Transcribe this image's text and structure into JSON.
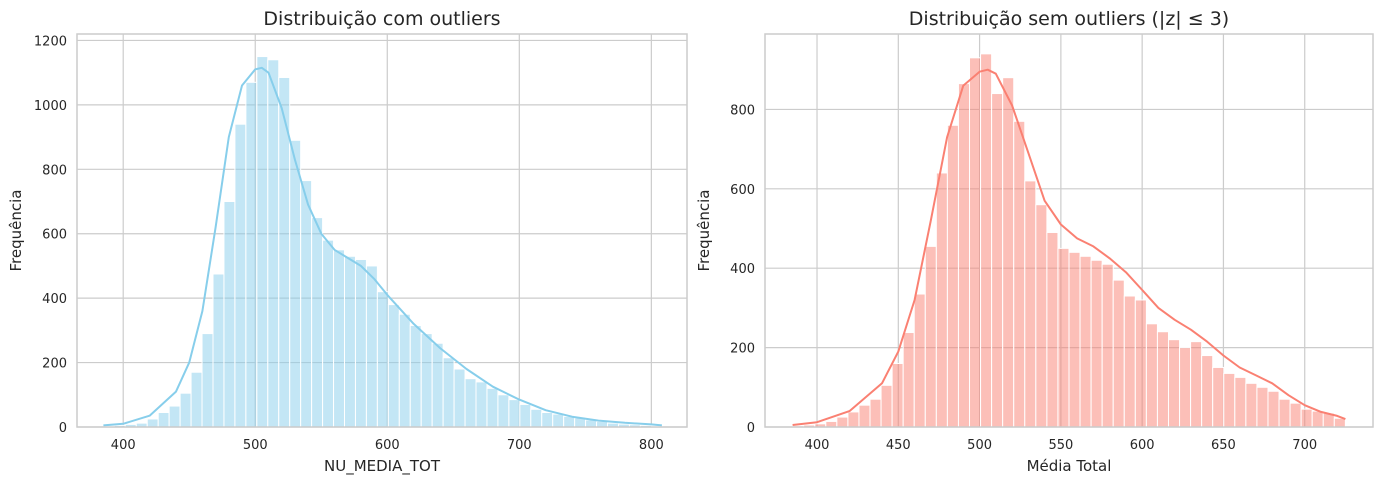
{
  "chart_data": [
    {
      "type": "histogram",
      "title": "Distribuição com outliers",
      "xlabel": "NU_MEDIA_TOT",
      "ylabel": "Frequência",
      "xlim": [
        365,
        827
      ],
      "ylim": [
        0,
        1220
      ],
      "xticks": [
        400,
        500,
        600,
        700,
        800
      ],
      "yticks": [
        0,
        200,
        400,
        600,
        800,
        1000,
        1200
      ],
      "grid": true,
      "kde": true,
      "color": "#87ceeb",
      "kde_color": "#87ceeb",
      "bins": {
        "edges": [
          385,
          393.3,
          401.6,
          409.9,
          418.2,
          426.5,
          434.8,
          443.1,
          451.4,
          459.7,
          468,
          476.3,
          484.6,
          492.9,
          501.2,
          509.5,
          517.8,
          526.1,
          534.4,
          542.7,
          551,
          559.3,
          567.6,
          575.9,
          584.2,
          592.5,
          600.8,
          609.1,
          617.4,
          625.7,
          634,
          642.3,
          650.6,
          658.9,
          667.2,
          675.5,
          683.8,
          692.1,
          700.4,
          708.7,
          717,
          725.3,
          733.6,
          741.9,
          750.2,
          758.5,
          766.8,
          775.1,
          783.4,
          791.7,
          800,
          808.3
        ],
        "counts": [
          3,
          5,
          8,
          12,
          25,
          45,
          65,
          105,
          170,
          290,
          475,
          700,
          940,
          1070,
          1150,
          1140,
          1085,
          890,
          765,
          650,
          580,
          550,
          530,
          520,
          500,
          420,
          380,
          350,
          315,
          290,
          260,
          215,
          180,
          150,
          140,
          120,
          100,
          85,
          70,
          55,
          45,
          40,
          33,
          28,
          22,
          17,
          12,
          9,
          7,
          5,
          3
        ]
      },
      "kde_curve": {
        "x": [
          385,
          400,
          420,
          440,
          450,
          460,
          470,
          480,
          490,
          500,
          505,
          510,
          520,
          530,
          540,
          550,
          560,
          570,
          580,
          590,
          600,
          610,
          620,
          640,
          660,
          680,
          700,
          720,
          740,
          760,
          780,
          800,
          808
        ],
        "y": [
          5,
          10,
          35,
          110,
          200,
          360,
          620,
          900,
          1060,
          1110,
          1115,
          1100,
          990,
          830,
          690,
          600,
          550,
          525,
          500,
          460,
          410,
          365,
          320,
          245,
          180,
          125,
          85,
          52,
          32,
          20,
          13,
          8,
          5
        ]
      }
    },
    {
      "type": "histogram",
      "title": "Distribuição sem outliers (|z| ≤ 3)",
      "xlabel": "Média Total",
      "ylabel": "Frequência",
      "xlim": [
        368,
        742
      ],
      "ylim": [
        0,
        990
      ],
      "xticks": [
        400,
        450,
        500,
        550,
        600,
        650,
        700
      ],
      "yticks": [
        0,
        200,
        400,
        600,
        800
      ],
      "grid": true,
      "kde": true,
      "color": "#fa8072",
      "kde_color": "#fa8072",
      "bins": {
        "edges": [
          385,
          391.8,
          398.6,
          405.4,
          412.2,
          419,
          425.8,
          432.6,
          439.4,
          446.2,
          453,
          459.8,
          466.6,
          473.4,
          480.2,
          487,
          493.8,
          500.6,
          507.4,
          514.2,
          521,
          527.8,
          534.6,
          541.4,
          548.2,
          555,
          561.8,
          568.6,
          575.4,
          582.2,
          589,
          595.8,
          602.6,
          609.4,
          616.2,
          623,
          629.8,
          636.6,
          643.4,
          650.2,
          657,
          663.8,
          670.6,
          677.4,
          684.2,
          691,
          697.8,
          704.6,
          711.4,
          718.2,
          725
        ],
        "counts": [
          3,
          5,
          8,
          14,
          25,
          38,
          55,
          70,
          105,
          160,
          238,
          335,
          455,
          640,
          760,
          865,
          930,
          940,
          840,
          880,
          770,
          620,
          560,
          490,
          450,
          440,
          430,
          420,
          410,
          370,
          330,
          320,
          260,
          240,
          220,
          200,
          215,
          180,
          150,
          135,
          125,
          110,
          100,
          90,
          70,
          60,
          45,
          40,
          35,
          22
        ]
      },
      "kde_curve": {
        "x": [
          385,
          400,
          420,
          440,
          450,
          460,
          470,
          480,
          490,
          500,
          505,
          510,
          520,
          530,
          540,
          550,
          560,
          570,
          580,
          590,
          600,
          610,
          620,
          630,
          640,
          650,
          660,
          670,
          680,
          690,
          700,
          710,
          720,
          725
        ],
        "y": [
          5,
          12,
          40,
          110,
          190,
          320,
          520,
          730,
          860,
          895,
          900,
          890,
          810,
          690,
          570,
          510,
          475,
          455,
          425,
          390,
          345,
          300,
          270,
          245,
          215,
          180,
          150,
          130,
          110,
          80,
          55,
          38,
          28,
          20
        ]
      }
    }
  ]
}
